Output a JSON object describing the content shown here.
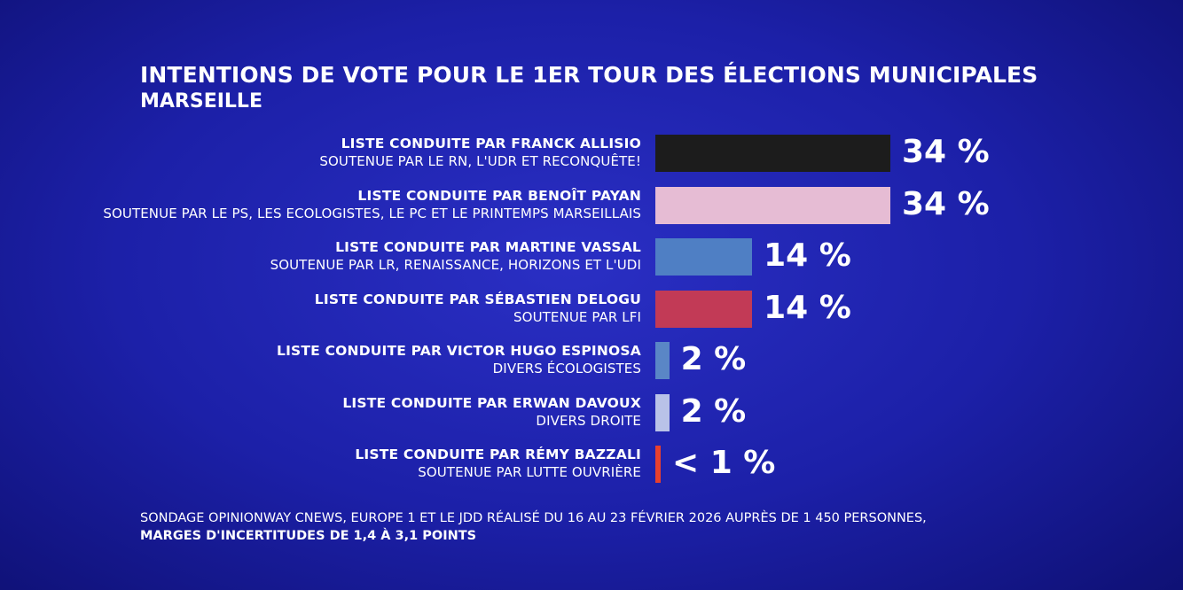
{
  "header": {
    "title": "INTENTIONS DE VOTE POUR LE 1ER TOUR DES ÉLECTIONS MUNICIPALES",
    "subtitle": "MARSEILLE"
  },
  "chart_data": {
    "type": "bar",
    "orientation": "horizontal",
    "title": "INTENTIONS DE VOTE POUR LE 1ER TOUR DES ÉLECTIONS MUNICIPALES",
    "subtitle": "MARSEILLE",
    "xlim": [
      0,
      34
    ],
    "grid": false,
    "legend": "none",
    "bars": [
      {
        "leader": "LISTE CONDUITE PAR FRANCK ALLISIO",
        "support": "SOUTENUE PAR LE RN, L'UDR ET RECONQUÊTE!",
        "value": 34,
        "value_label": "34 %",
        "color": "#1c1c1c"
      },
      {
        "leader": "LISTE CONDUITE PAR BENOÎT PAYAN",
        "support": "SOUTENUE PAR LE PS, LES ECOLOGISTES, LE PC ET LE PRINTEMPS MARSEILLAIS",
        "value": 34,
        "value_label": "34 %",
        "color": "#e6bcd4"
      },
      {
        "leader": "LISTE CONDUITE PAR MARTINE VASSAL",
        "support": "SOUTENUE PAR LR, RENAISSANCE, HORIZONS ET L'UDI",
        "value": 14,
        "value_label": "14 %",
        "color": "#4f7fc4"
      },
      {
        "leader": "LISTE CONDUITE PAR SÉBASTIEN DELOGU",
        "support": "SOUTENUE PAR LFI",
        "value": 14,
        "value_label": "14 %",
        "color": "#c23a56"
      },
      {
        "leader": "LISTE CONDUITE PAR VICTOR HUGO ESPINOSA",
        "support": "DIVERS ÉCOLOGISTES",
        "value": 2,
        "value_label": "2 %",
        "color": "#5a86c6"
      },
      {
        "leader": "LISTE CONDUITE PAR ERWAN DAVOUX",
        "support": "DIVERS DROITE",
        "value": 2,
        "value_label": "2 %",
        "color": "#b9c2e8"
      },
      {
        "leader": "LISTE CONDUITE PAR RÉMY BAZZALI",
        "support": "SOUTENUE PAR LUTTE OUVRIÈRE",
        "value": 0.5,
        "value_label": "< 1 %",
        "color": "#e8402e"
      }
    ]
  },
  "footer": {
    "line1": "SONDAGE OPINIONWAY CNEWS, EUROPE 1 ET LE JDD RÉALISÉ DU 16 AU 23 FÉVRIER 2026 AUPRÈS DE 1 450 PERSONNES,",
    "line2": "MARGES D'INCERTITUDES DE 1,4 À 3,1 POINTS"
  }
}
